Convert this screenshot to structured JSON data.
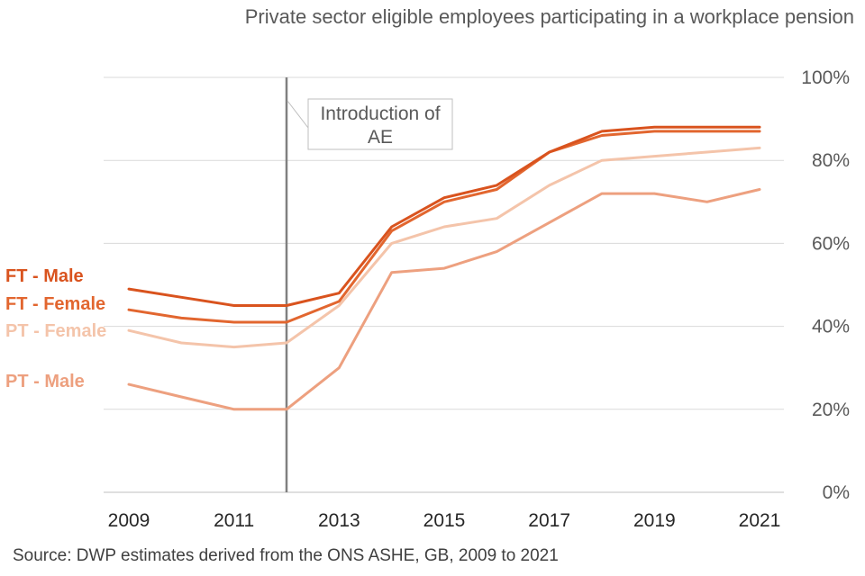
{
  "chart_data": {
    "type": "line",
    "title": "Private sector eligible employees participating in a workplace pension",
    "x": [
      2009,
      2010,
      2011,
      2012,
      2013,
      2014,
      2015,
      2016,
      2017,
      2018,
      2019,
      2020,
      2021
    ],
    "x_tick_labels": [
      "2009",
      "2011",
      "2013",
      "2015",
      "2017",
      "2019",
      "2021"
    ],
    "x_ticks": [
      2009,
      2011,
      2013,
      2015,
      2017,
      2019,
      2021
    ],
    "ylim": [
      0,
      100
    ],
    "y_ticks": [
      0,
      20,
      40,
      60,
      80,
      100
    ],
    "y_tick_labels": [
      "0%",
      "20%",
      "40%",
      "60%",
      "80%",
      "100%"
    ],
    "grid": true,
    "y_axis_position": "right",
    "series": [
      {
        "name": "FT - Male",
        "color": "#D9531E",
        "values": [
          49,
          47,
          45,
          45,
          48,
          64,
          71,
          74,
          82,
          87,
          88,
          88,
          88
        ]
      },
      {
        "name": "FT - Female",
        "color": "#E2662F",
        "values": [
          44,
          42,
          41,
          41,
          46,
          63,
          70,
          73,
          82,
          86,
          87,
          87,
          87
        ]
      },
      {
        "name": "PT - Female",
        "color": "#F4C4AA",
        "values": [
          39,
          36,
          35,
          36,
          45,
          60,
          64,
          66,
          74,
          80,
          81,
          82,
          83
        ]
      },
      {
        "name": "PT - Male",
        "color": "#EDA07F",
        "values": [
          26,
          23,
          20,
          20,
          30,
          53,
          54,
          58,
          65,
          72,
          72,
          70,
          73
        ]
      }
    ],
    "annotation": {
      "x": 2012,
      "text_line1": "Introduction of",
      "text_line2": "AE",
      "line_color": "#808080"
    },
    "source": "Source: DWP estimates derived from the ONS ASHE, GB, 2009 to 2021"
  }
}
